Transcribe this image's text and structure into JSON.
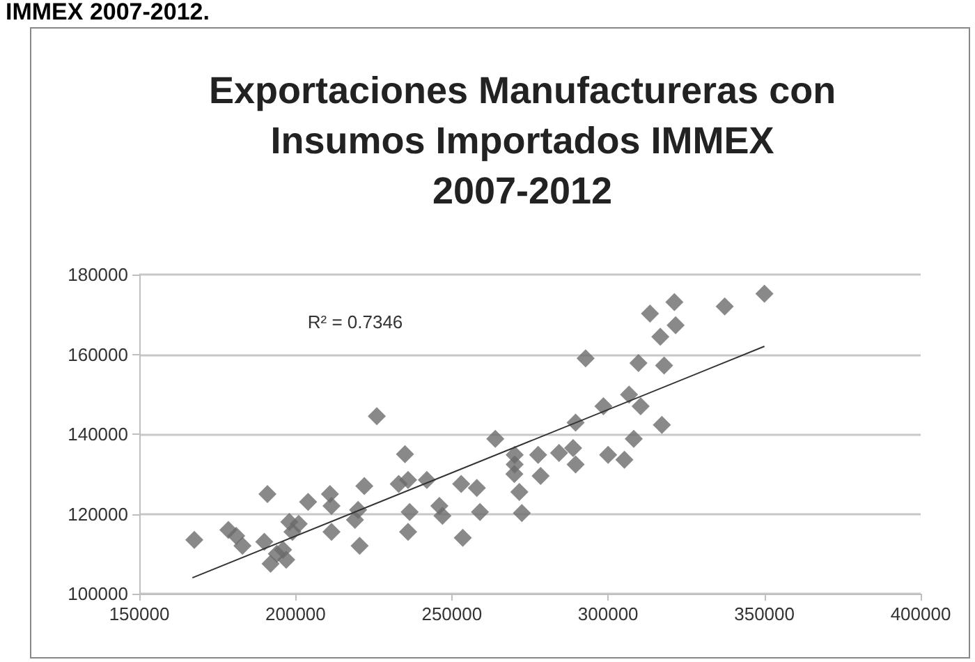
{
  "chart_data": {
    "type": "scatter",
    "title": "Exportaciones Manufactureras con\nInsumos Importados IMMEX\n2007-2012",
    "marker": "diamond",
    "grid": "y",
    "xlim": [
      150000,
      400000
    ],
    "xticks": [
      150000,
      200000,
      250000,
      300000,
      350000,
      400000
    ],
    "ylim": [
      100000,
      180000
    ],
    "yticks": [
      100000,
      120000,
      140000,
      160000,
      180000
    ],
    "annotations": [
      "IMMEX 2007-2012.",
      "R² = 0.7346"
    ],
    "series": [
      {
        "color": "#6b6b6b",
        "x": [
          167600,
          178500,
          181000,
          183000,
          190000,
          191000,
          192000,
          194000,
          196000,
          197000,
          198000,
          199000,
          201000,
          204000,
          211000,
          211500,
          211500,
          219000,
          220000,
          220500,
          222000,
          226000,
          233000,
          235000,
          236000,
          236500,
          236000,
          242000,
          246000,
          247000,
          253000,
          253500,
          258000,
          259000,
          263900,
          270000,
          270100,
          270100,
          271600,
          272400,
          277600,
          278400,
          284300,
          288800,
          289600,
          289600,
          292800,
          298500,
          300000,
          305200,
          306700,
          308200,
          310400,
          309700,
          313400,
          317200,
          317900,
          316700,
          321600,
          321200,
          337300,
          350000
        ],
        "values": [
          113500,
          116000,
          114500,
          112000,
          113000,
          125000,
          107500,
          110000,
          111000,
          108500,
          118000,
          115500,
          117500,
          123000,
          125000,
          122000,
          115500,
          118500,
          121000,
          112000,
          127000,
          144500,
          127500,
          135000,
          128500,
          120500,
          115500,
          128500,
          122000,
          119500,
          127500,
          114000,
          126500,
          120500,
          138800,
          130000,
          132400,
          134800,
          125500,
          120200,
          134800,
          129500,
          135300,
          136500,
          142900,
          132400,
          159000,
          147000,
          134800,
          133600,
          149900,
          138800,
          147000,
          157800,
          170200,
          142300,
          157200,
          164400,
          167300,
          173100,
          172000,
          175200
        ]
      },
      {
        "type": "line",
        "color": "#333333",
        "marker": "none",
        "x": [
          167000,
          350000
        ],
        "values": [
          104000,
          162000
        ]
      }
    ]
  }
}
